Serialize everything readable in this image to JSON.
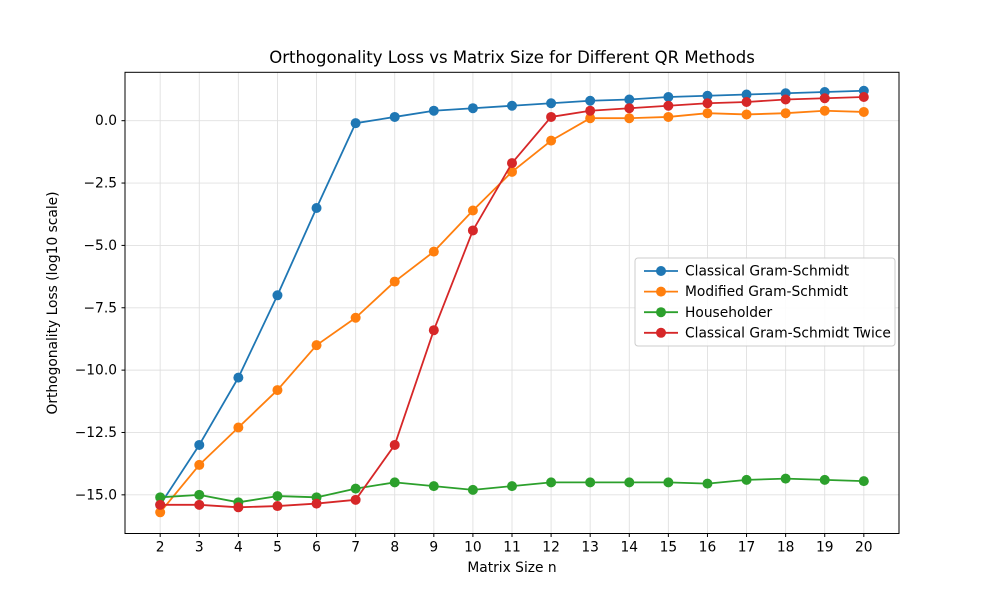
{
  "chart_data": {
    "type": "line",
    "title": "Orthogonality Loss vs Matrix Size for Different QR Methods",
    "xlabel": "Matrix Size n",
    "ylabel": "Orthogonality Loss (log10 scale)",
    "x": [
      2,
      3,
      4,
      5,
      6,
      7,
      8,
      9,
      10,
      11,
      12,
      13,
      14,
      15,
      16,
      17,
      18,
      19,
      20
    ],
    "xtick_labels": [
      "2",
      "3",
      "4",
      "5",
      "6",
      "7",
      "8",
      "9",
      "10",
      "11",
      "12",
      "13",
      "14",
      "15",
      "16",
      "17",
      "18",
      "19",
      "20"
    ],
    "yticks": [
      0.0,
      -2.5,
      -5.0,
      -7.5,
      -10.0,
      -12.5,
      -15.0
    ],
    "ytick_labels": [
      "0.0",
      "−2.5",
      "−5.0",
      "−7.5",
      "−10.0",
      "−12.5",
      "−15.0"
    ],
    "xlim": [
      1.1,
      20.9
    ],
    "ylim": [
      -16.55,
      1.94
    ],
    "grid": true,
    "grid_color": "#e0e0e0",
    "spine_color": "#000000",
    "legend": {
      "location": "center right",
      "border_color": "#cccccc",
      "background": "#ffffff"
    },
    "series": [
      {
        "name": "Classical Gram-Schmidt",
        "color": "#1f77b4",
        "values": [
          -15.4,
          -13.0,
          -10.3,
          -7.0,
          -3.5,
          -0.1,
          0.15,
          0.4,
          0.5,
          0.6,
          0.7,
          0.8,
          0.85,
          0.95,
          1.0,
          1.05,
          1.1,
          1.15,
          1.2
        ]
      },
      {
        "name": "Modified Gram-Schmidt",
        "color": "#ff7f0e",
        "values": [
          -15.7,
          -13.8,
          -12.3,
          -10.8,
          -9.0,
          -7.9,
          -6.45,
          -5.25,
          -3.6,
          -2.05,
          -0.8,
          0.1,
          0.1,
          0.15,
          0.3,
          0.25,
          0.3,
          0.4,
          0.35
        ]
      },
      {
        "name": "Householder",
        "color": "#2ca02c",
        "values": [
          -15.1,
          -15.0,
          -15.3,
          -15.05,
          -15.1,
          -14.75,
          -14.5,
          -14.65,
          -14.8,
          -14.65,
          -14.5,
          -14.5,
          -14.5,
          -14.5,
          -14.55,
          -14.4,
          -14.35,
          -14.4,
          -14.45
        ]
      },
      {
        "name": "Classical Gram-Schmidt Twice",
        "color": "#d62728",
        "values": [
          -15.4,
          -15.4,
          -15.5,
          -15.45,
          -15.35,
          -15.2,
          -13.0,
          -8.4,
          -4.4,
          -1.7,
          0.15,
          0.4,
          0.5,
          0.6,
          0.7,
          0.75,
          0.85,
          0.9,
          0.95
        ]
      }
    ]
  }
}
